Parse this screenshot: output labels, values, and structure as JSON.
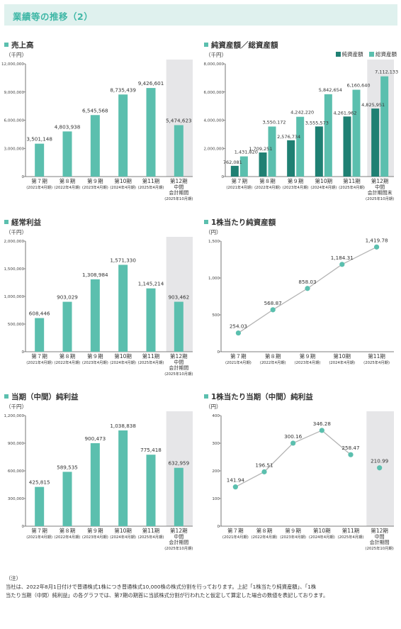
{
  "header": {
    "title": "業績等の推移（2）"
  },
  "note": {
    "label": "（注）",
    "line1": "当社は、2022年8月1日付けで普通株式1株につき普通株式10,000株の株式分割を行っております。上記「1株当たり純資産額」、「1株",
    "line2": "当たり当期（中間）純利益」の各グラフでは、第7期の期首に当該株式分割が行われたと仮定して算定した場合の数値を表記しております。"
  },
  "colors": {
    "accent": "#5bbfae",
    "dark": "#1f8073",
    "shade": "#e6e6e8",
    "line": "#b3b3b3",
    "header_bg": "#dff1ee",
    "header_text": "#3fb7a6"
  },
  "chart_data": [
    {
      "id": "sales",
      "type": "bar",
      "title": "売上高",
      "unit": "（千円）",
      "categories": [
        {
          "l1": "第７期",
          "sub": [
            "(2021年4月期)"
          ]
        },
        {
          "l1": "第８期",
          "sub": [
            "(2022年4月期)"
          ]
        },
        {
          "l1": "第９期",
          "sub": [
            "(2023年4月期)"
          ]
        },
        {
          "l1": "第10期",
          "sub": [
            "(2024年4月期)"
          ]
        },
        {
          "l1": "第11期",
          "sub": [
            "(2025年4月期)"
          ]
        },
        {
          "l1": "第12期",
          "sub": [
            "中間",
            "会計期間",
            "(2025年10月期)"
          ]
        }
      ],
      "values": [
        3501148,
        4803938,
        6545568,
        8735439,
        9426601,
        5474623
      ],
      "labels": [
        "3,501,148",
        "4,803,938",
        "6,545,568",
        "8,735,439",
        "9,426,601",
        "5,474,623"
      ],
      "yticks": [
        0,
        3000000,
        6000000,
        9000000,
        12000000
      ],
      "ytick_labels": [
        "0",
        "3,000,000",
        "6,000,000",
        "9,000,000",
        "12,000,000"
      ],
      "ylim": [
        0,
        12000000
      ],
      "highlight_last": true
    },
    {
      "id": "assets",
      "type": "bar",
      "title": "純資産額／総資産額",
      "unit": "（千円）",
      "legend": [
        "純資産額",
        "総資産額"
      ],
      "categories": [
        {
          "l1": "第７期",
          "sub": [
            "(2021年4月期)"
          ]
        },
        {
          "l1": "第８期",
          "sub": [
            "(2022年4月期)"
          ]
        },
        {
          "l1": "第９期",
          "sub": [
            "(2023年4月期)"
          ]
        },
        {
          "l1": "第10期",
          "sub": [
            "(2024年4月期)"
          ]
        },
        {
          "l1": "第11期",
          "sub": [
            "(2025年4月期)"
          ]
        },
        {
          "l1": "第12期",
          "sub": [
            "中間",
            "会計期間末",
            "(2025年10月期)"
          ]
        }
      ],
      "series": [
        {
          "name": "純資産額",
          "values": [
            762081,
            1709251,
            2576734,
            3555573,
            4261962,
            4825951
          ],
          "labels": [
            "762,081",
            "1,709,251",
            "2,576,734",
            "3,555,573",
            "4,261,962",
            "4,825,951"
          ]
        },
        {
          "name": "総資産額",
          "values": [
            1431820,
            3550172,
            4242220,
            5842654,
            6160640,
            7112133
          ],
          "labels": [
            "1,431,820",
            "3,550,172",
            "4,242,220",
            "5,842,654",
            "6,160,640",
            "7,112,133"
          ]
        }
      ],
      "yticks": [
        0,
        2000000,
        4000000,
        6000000,
        8000000
      ],
      "ytick_labels": [
        "0",
        "2,000,000",
        "4,000,000",
        "6,000,000",
        "8,000,000"
      ],
      "ylim": [
        0,
        8000000
      ],
      "highlight_last": true
    },
    {
      "id": "ordinary",
      "type": "bar",
      "title": "経常利益",
      "unit": "（千円）",
      "categories": [
        {
          "l1": "第７期",
          "sub": [
            "(2021年4月期)"
          ]
        },
        {
          "l1": "第８期",
          "sub": [
            "(2022年4月期)"
          ]
        },
        {
          "l1": "第９期",
          "sub": [
            "(2023年4月期)"
          ]
        },
        {
          "l1": "第10期",
          "sub": [
            "(2024年4月期)"
          ]
        },
        {
          "l1": "第11期",
          "sub": [
            "(2025年4月期)"
          ]
        },
        {
          "l1": "第12期",
          "sub": [
            "中間",
            "会計期間",
            "(2025年10月期)"
          ]
        }
      ],
      "values": [
        608446,
        903029,
        1308984,
        1571330,
        1145214,
        903462
      ],
      "labels": [
        "608,446",
        "903,029",
        "1,308,984",
        "1,571,330",
        "1,145,214",
        "903,462"
      ],
      "yticks": [
        0,
        500000,
        1000000,
        1500000,
        2000000
      ],
      "ytick_labels": [
        "0",
        "500,000",
        "1,000,000",
        "1,500,000",
        "2,000,000"
      ],
      "ylim": [
        0,
        2000000
      ],
      "highlight_last": true
    },
    {
      "id": "bps",
      "type": "line",
      "title": "1株当たり純資産額",
      "unit": "（円）",
      "categories": [
        {
          "l1": "第７期",
          "sub": [
            "(2021年4月期)"
          ]
        },
        {
          "l1": "第８期",
          "sub": [
            "(2022年4月期)"
          ]
        },
        {
          "l1": "第９期",
          "sub": [
            "(2023年4月期)"
          ]
        },
        {
          "l1": "第10期",
          "sub": [
            "(2024年4月期)"
          ]
        },
        {
          "l1": "第11期",
          "sub": [
            "(2025年4月期)"
          ]
        }
      ],
      "values": [
        254.03,
        568.87,
        858.03,
        1184.31,
        1419.78
      ],
      "labels": [
        "254.03",
        "568.87",
        "858.03",
        "1,184.31",
        "1,419.78"
      ],
      "yticks": [
        0,
        500,
        1000,
        1500
      ],
      "ytick_labels": [
        "0",
        "500",
        "1,000",
        "1,500"
      ],
      "ylim": [
        0,
        1500
      ],
      "highlight_last": false
    },
    {
      "id": "netincome",
      "type": "bar",
      "title": "当期（中間）純利益",
      "unit": "（千円）",
      "categories": [
        {
          "l1": "第７期",
          "sub": [
            "(2021年4月期)"
          ]
        },
        {
          "l1": "第８期",
          "sub": [
            "(2022年4月期)"
          ]
        },
        {
          "l1": "第９期",
          "sub": [
            "(2023年4月期)"
          ]
        },
        {
          "l1": "第10期",
          "sub": [
            "(2024年4月期)"
          ]
        },
        {
          "l1": "第11期",
          "sub": [
            "(2025年4月期)"
          ]
        },
        {
          "l1": "第12期",
          "sub": [
            "中間",
            "会計期間",
            "(2025年10月期)"
          ]
        }
      ],
      "values": [
        425815,
        589535,
        900473,
        1038838,
        775418,
        632959
      ],
      "labels": [
        "425,815",
        "589,535",
        "900,473",
        "1,038,838",
        "775,418",
        "632,959"
      ],
      "yticks": [
        0,
        300000,
        600000,
        900000,
        1200000
      ],
      "ytick_labels": [
        "0",
        "300,000",
        "600,000",
        "900,000",
        "1,200,000"
      ],
      "ylim": [
        0,
        1200000
      ],
      "highlight_last": true
    },
    {
      "id": "eps",
      "type": "line",
      "title": "1株当たり当期（中間）純利益",
      "unit": "（円）",
      "categories": [
        {
          "l1": "第７期",
          "sub": [
            "(2021年4月期)"
          ]
        },
        {
          "l1": "第８期",
          "sub": [
            "(2022年4月期)"
          ]
        },
        {
          "l1": "第９期",
          "sub": [
            "(2023年4月期)"
          ]
        },
        {
          "l1": "第10期",
          "sub": [
            "(2024年4月期)"
          ]
        },
        {
          "l1": "第11期",
          "sub": [
            "(2025年4月期)"
          ]
        },
        {
          "l1": "第12期",
          "sub": [
            "中間",
            "会計期間",
            "(2025年10月期)"
          ]
        }
      ],
      "values": [
        141.94,
        196.51,
        300.16,
        346.28,
        258.47,
        210.99
      ],
      "labels": [
        "141.94",
        "196.51",
        "300.16",
        "346.28",
        "258.47",
        "210.99"
      ],
      "yticks": [
        0,
        100,
        200,
        300,
        400
      ],
      "ytick_labels": [
        "0",
        "100",
        "200",
        "300",
        "400"
      ],
      "ylim": [
        0,
        400
      ],
      "highlight_last": true,
      "connect_points": 5
    }
  ]
}
